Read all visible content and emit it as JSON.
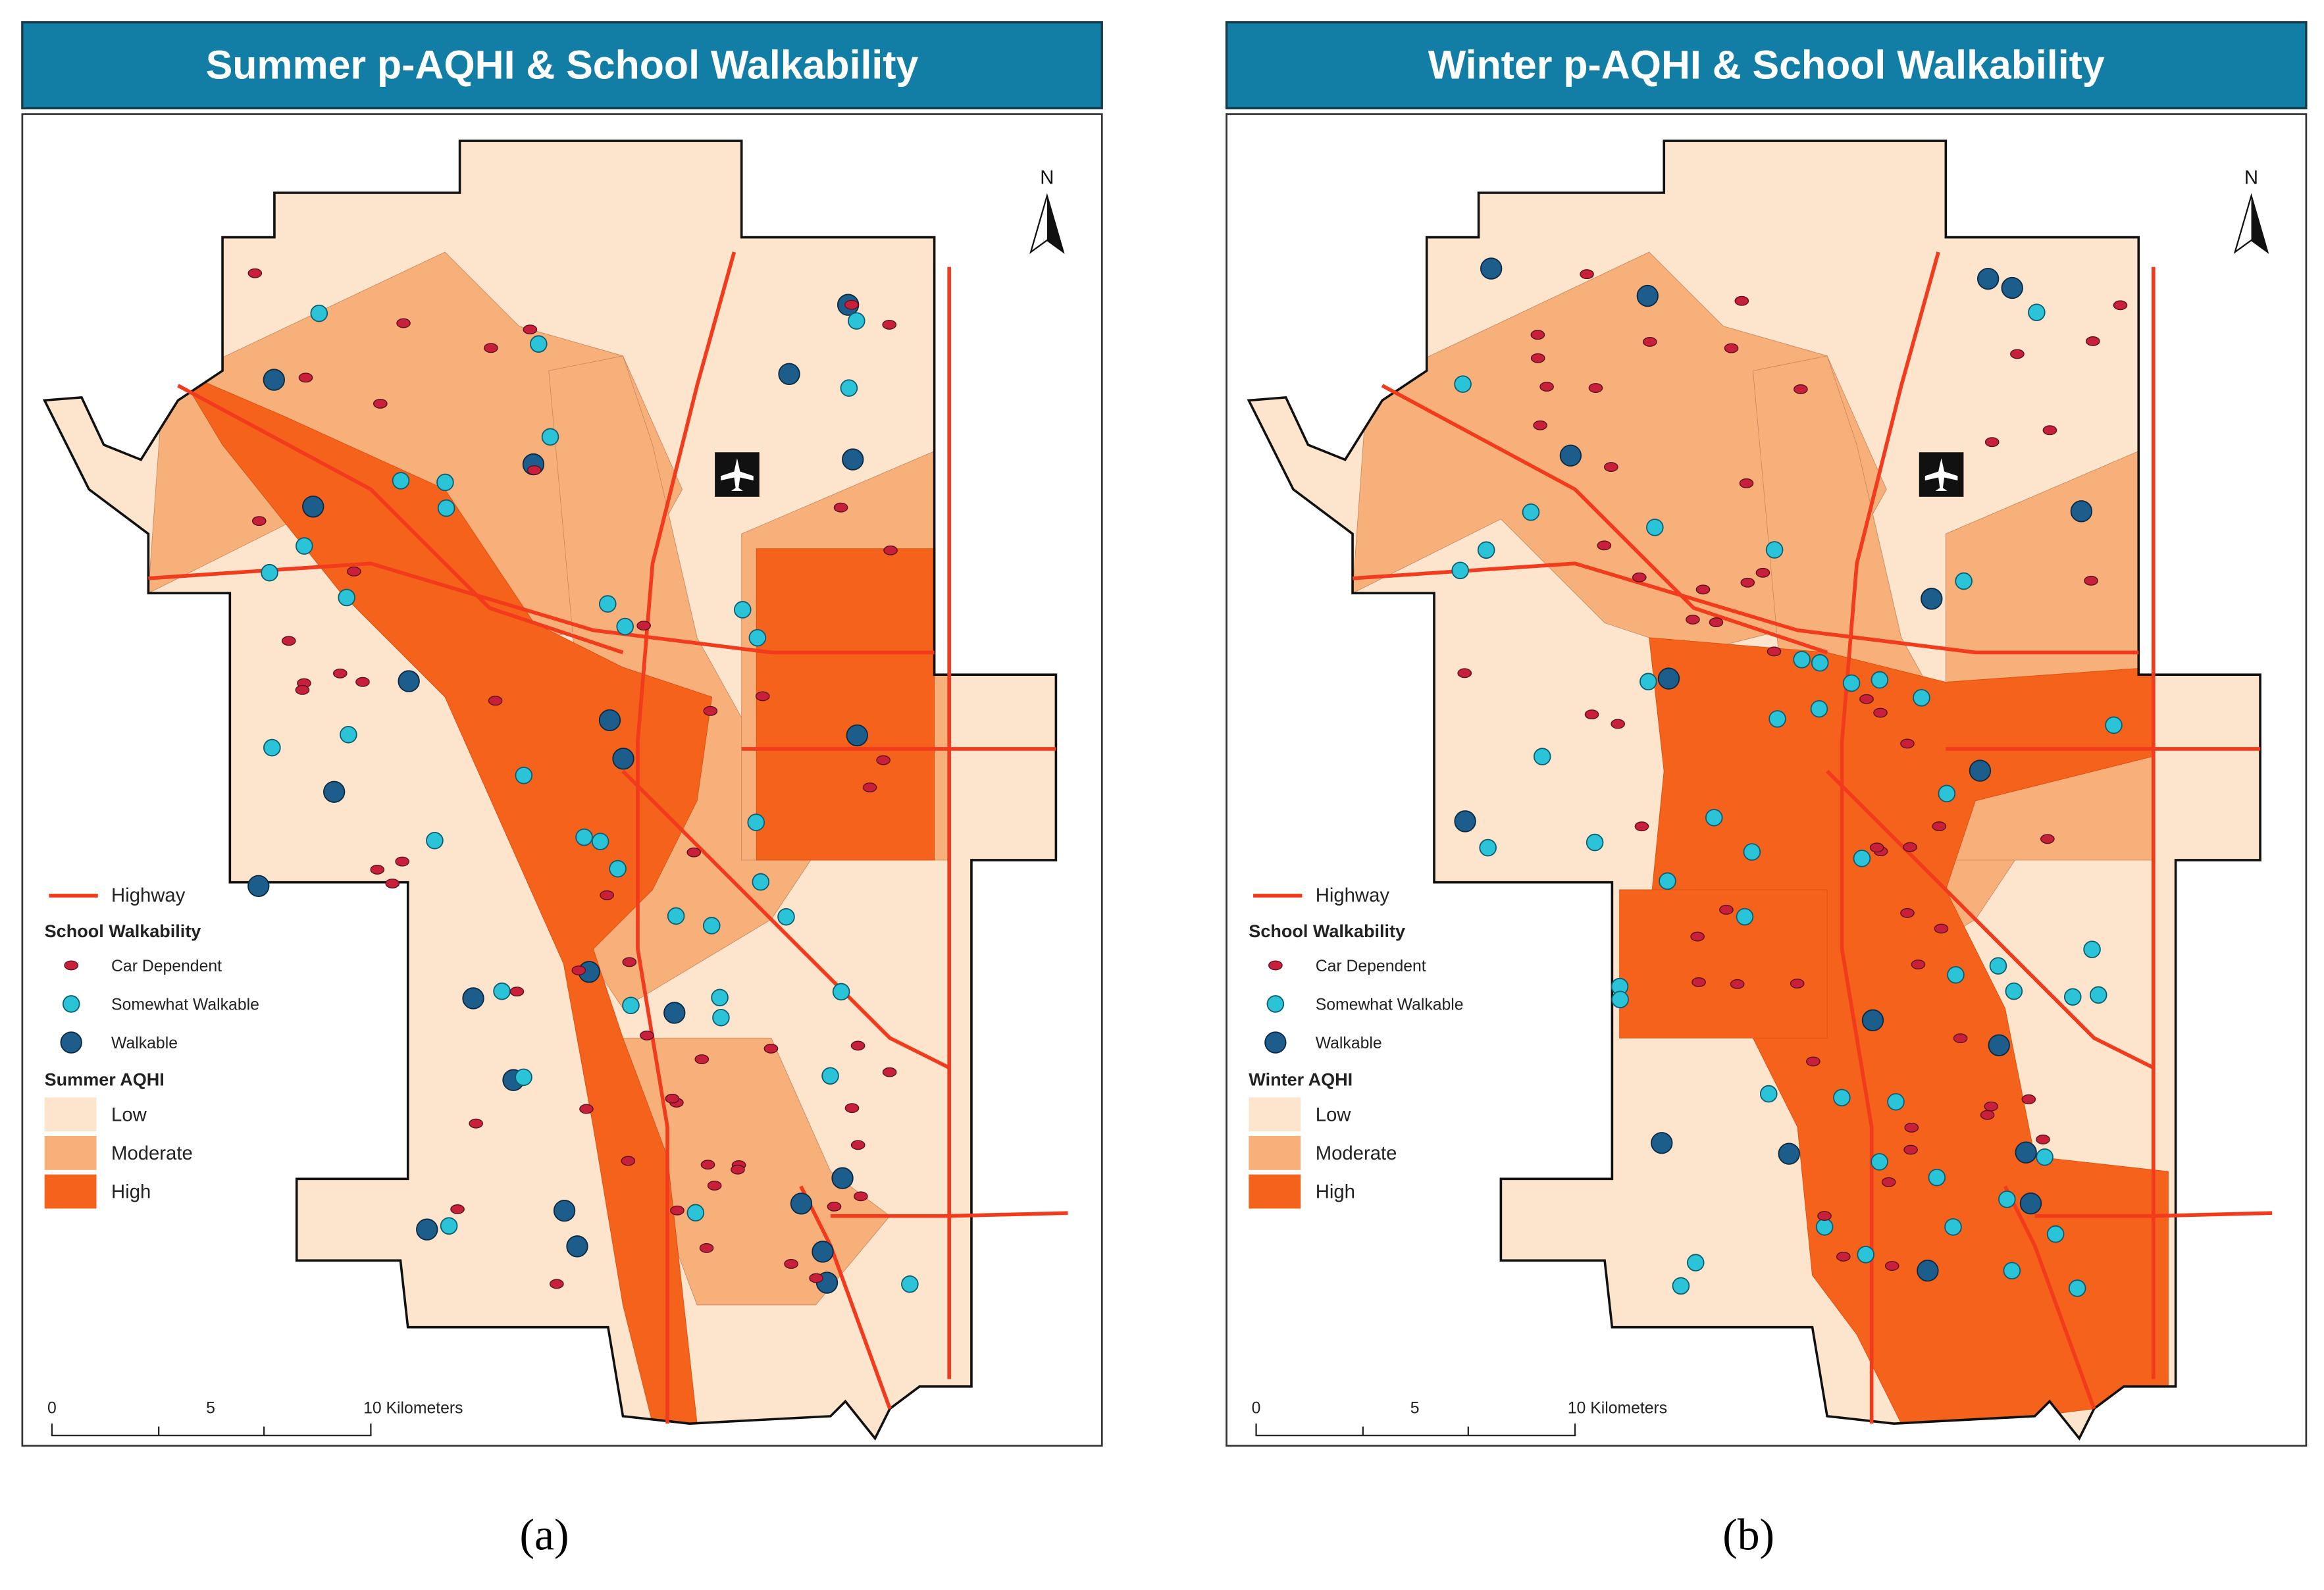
{
  "panels": [
    {
      "title": "Summer p-AQHI & School Walkability",
      "north": "N",
      "legend": {
        "highway": "Highway",
        "walkability_title": "School Walkability",
        "walkability": [
          "Car Dependent",
          "Somewhat Walkable",
          "Walkable"
        ],
        "aqhi_title": "Summer AQHI",
        "aqhi": [
          "Low",
          "Moderate",
          "High"
        ]
      },
      "scale": [
        "0",
        "5",
        "10 Kilometers"
      ],
      "caption": "(a)"
    },
    {
      "title": "Winter p-AQHI & School Walkability",
      "north": "N",
      "legend": {
        "highway": "Highway",
        "walkability_title": "School Walkability",
        "walkability": [
          "Car Dependent",
          "Somewhat Walkable",
          "Walkable"
        ],
        "aqhi_title": "Winter AQHI",
        "aqhi": [
          "Low",
          "Moderate",
          "High"
        ]
      },
      "scale": [
        "0",
        "5",
        "10 Kilometers"
      ],
      "caption": "(b)"
    }
  ]
}
